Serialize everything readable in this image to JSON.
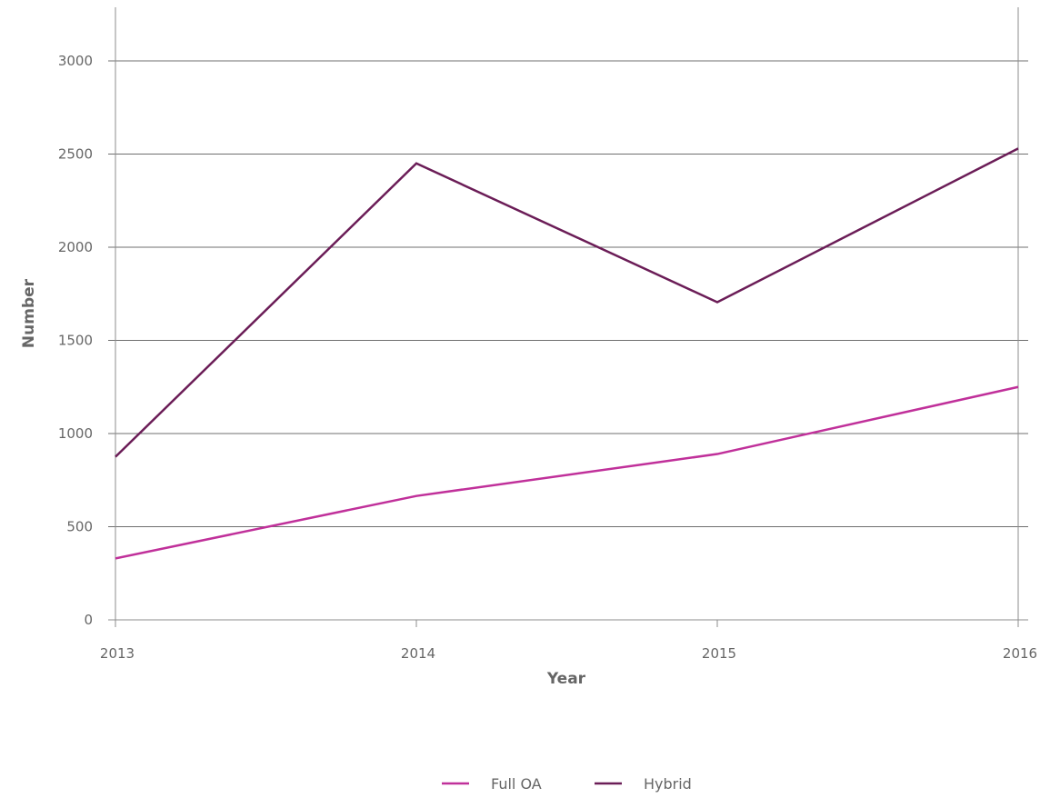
{
  "chart_data": {
    "type": "line",
    "title": "",
    "xlabel": "Year",
    "ylabel": "Number",
    "x": [
      "2013",
      "2014",
      "2015",
      "2016"
    ],
    "ylim": [
      0,
      3000
    ],
    "yticks": [
      0,
      500,
      1000,
      1500,
      2000,
      2500,
      3000
    ],
    "grid": true,
    "legend_position": "bottom",
    "series": [
      {
        "name": "Full OA",
        "color": "#c0309a",
        "values": [
          330,
          665,
          890,
          1250
        ]
      },
      {
        "name": "Hybrid",
        "color": "#6b1d57",
        "values": [
          875,
          2450,
          1705,
          2530
        ]
      }
    ]
  }
}
